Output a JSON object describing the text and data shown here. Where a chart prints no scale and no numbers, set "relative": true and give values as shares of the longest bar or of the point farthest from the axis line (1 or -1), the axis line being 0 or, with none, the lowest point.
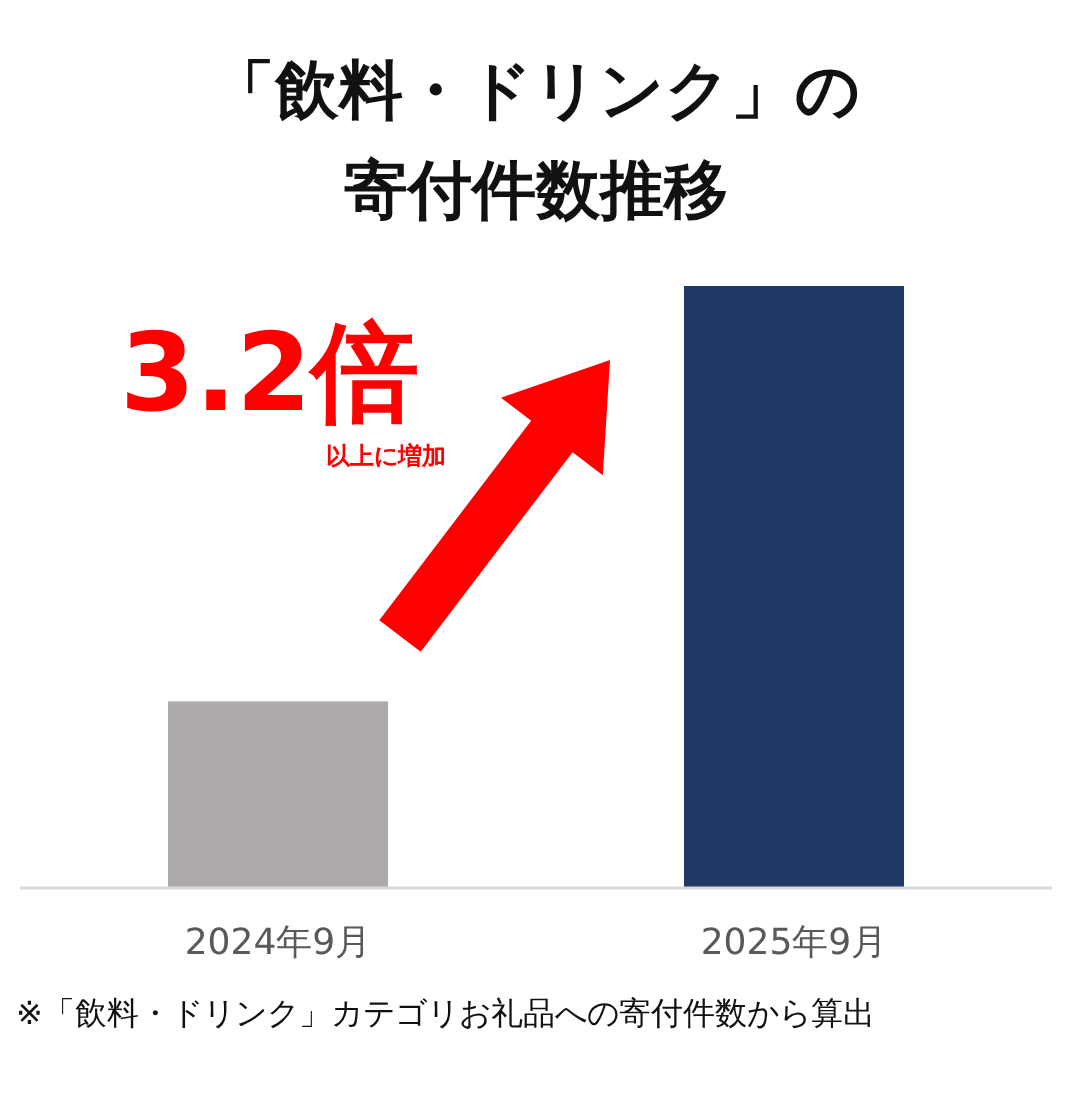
{
  "chart_data": {
    "type": "bar",
    "title": "「飲料・ドリンク」の寄付件数推移",
    "categories": [
      "2024年9月",
      "2025年9月"
    ],
    "values": [
      0.31,
      1
    ],
    "colors": [
      "#aeaaaa",
      "#203864"
    ],
    "relative": true,
    "annotations": [
      "3.2倍",
      "以上に増加",
      "※「飲料・ドリンク」カテゴリお礼品への寄付件数から算出"
    ]
  }
}
